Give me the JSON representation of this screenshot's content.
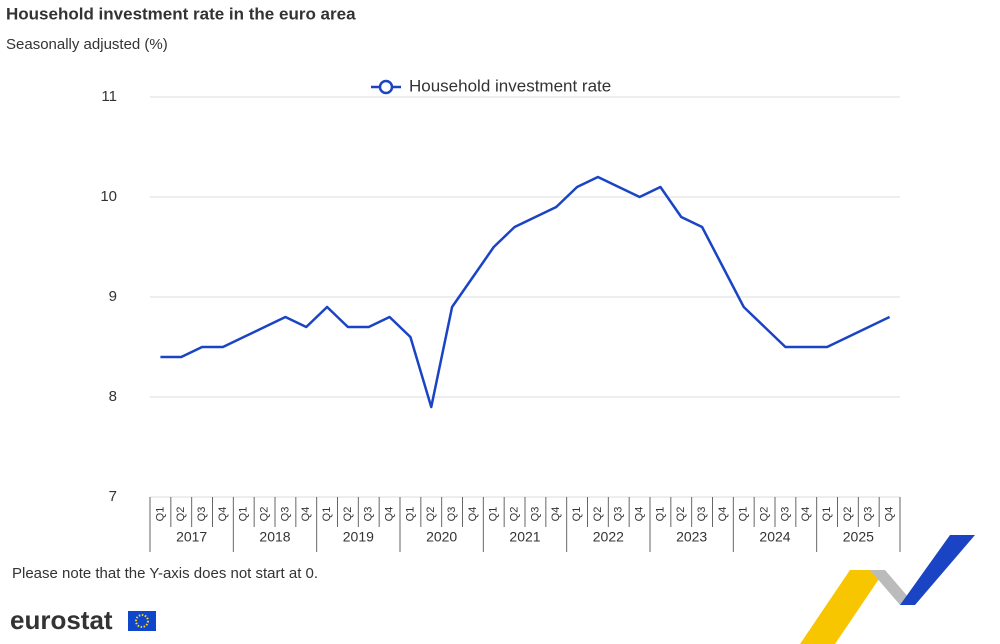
{
  "chart_data": {
    "type": "line",
    "title": "Household investment rate in the euro area",
    "subtitle": "Seasonally adjusted (%)",
    "categories": [
      "Q1",
      "Q2",
      "Q3",
      "Q4",
      "Q1",
      "Q2",
      "Q3",
      "Q4",
      "Q1",
      "Q2",
      "Q3",
      "Q4",
      "Q1",
      "Q2",
      "Q3",
      "Q4",
      "Q1",
      "Q2",
      "Q3",
      "Q4",
      "Q1",
      "Q2",
      "Q3",
      "Q4",
      "Q1",
      "Q2",
      "Q3",
      "Q4",
      "Q1",
      "Q2",
      "Q3",
      "Q4",
      "Q1",
      "Q2",
      "Q3",
      "Q4"
    ],
    "category_groups": [
      "2017",
      "2018",
      "2019",
      "2020",
      "2021",
      "2022",
      "2023",
      "2024",
      "2025"
    ],
    "series": [
      {
        "name": "Household investment rate",
        "color": "#1a44c4",
        "values": [
          8.4,
          8.4,
          8.5,
          8.5,
          8.6,
          8.7,
          8.8,
          8.7,
          8.9,
          8.7,
          8.7,
          8.8,
          8.6,
          7.9,
          8.9,
          9.2,
          9.5,
          9.7,
          9.8,
          9.9,
          10.1,
          10.2,
          10.1,
          10.0,
          10.1,
          9.8,
          9.7,
          9.3,
          8.9,
          8.7,
          8.5,
          8.5,
          8.5,
          8.6,
          8.7,
          8.8
        ]
      }
    ],
    "ylim": [
      7,
      11
    ],
    "yticks": [
      7,
      8,
      9,
      10,
      11
    ],
    "grid": true,
    "legend": "top"
  },
  "footer": {
    "note": "Please note that the Y-axis does not start at 0.",
    "logo": "eurostat"
  }
}
